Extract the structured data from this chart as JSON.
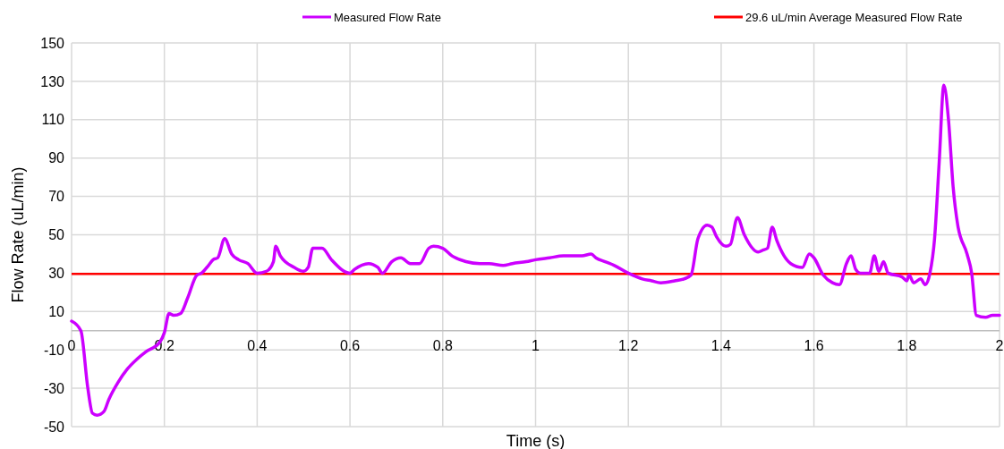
{
  "chart_data": {
    "type": "line",
    "xlabel": "Time (s)",
    "ylabel": "Flow Rate (uL/min)",
    "xlim": [
      0,
      2
    ],
    "xticks": [
      0,
      0.2,
      0.4,
      0.6,
      0.8,
      1,
      1.2,
      1.4,
      1.6,
      1.8,
      2
    ],
    "ylim": [
      -50,
      150
    ],
    "yticks": [
      -50,
      -30,
      -10,
      10,
      30,
      50,
      70,
      90,
      110,
      130,
      150
    ],
    "grid": true,
    "legend": "top",
    "marker": "none",
    "line_style": "solid",
    "series": [
      {
        "name": "Measured Flow Rate",
        "color": "#cc00ff",
        "x": [
          0,
          0.02,
          0.035,
          0.045,
          0.055,
          0.07,
          0.08,
          0.1,
          0.12,
          0.14,
          0.16,
          0.19,
          0.2,
          0.21,
          0.22,
          0.235,
          0.25,
          0.27,
          0.28,
          0.295,
          0.305,
          0.315,
          0.33,
          0.345,
          0.36,
          0.38,
          0.4,
          0.42,
          0.435,
          0.44,
          0.45,
          0.48,
          0.5,
          0.51,
          0.52,
          0.54,
          0.56,
          0.6,
          0.61,
          0.64,
          0.66,
          0.67,
          0.69,
          0.71,
          0.73,
          0.75,
          0.77,
          0.78,
          0.8,
          0.82,
          0.85,
          0.88,
          0.9,
          0.93,
          0.95,
          0.98,
          1,
          1.03,
          1.06,
          1.1,
          1.12,
          1.13,
          1.15,
          1.17,
          1.2,
          1.23,
          1.25,
          1.27,
          1.3,
          1.32,
          1.335,
          1.35,
          1.37,
          1.38,
          1.39,
          1.41,
          1.42,
          1.435,
          1.45,
          1.48,
          1.49,
          1.5,
          1.51,
          1.52,
          1.55,
          1.575,
          1.59,
          1.6,
          1.62,
          1.64,
          1.655,
          1.67,
          1.68,
          1.69,
          1.7,
          1.72,
          1.73,
          1.74,
          1.75,
          1.76,
          1.79,
          1.8,
          1.805,
          1.815,
          1.83,
          1.84,
          1.85,
          1.86,
          1.87,
          1.88,
          1.89,
          1.9,
          1.91,
          1.93,
          1.94,
          1.95,
          1.97,
          1.985,
          2
        ],
        "values": [
          5,
          0,
          -30,
          -43,
          -44,
          -42,
          -36,
          -27,
          -20,
          -15,
          -11,
          -6,
          -1,
          9,
          8,
          9,
          17,
          29,
          30,
          34,
          37,
          38,
          48,
          40,
          37,
          35,
          30,
          31,
          36,
          44,
          39,
          33,
          31,
          33,
          43,
          43,
          37,
          30,
          32,
          35,
          33,
          30,
          36,
          38,
          35,
          35,
          43,
          44,
          43,
          39,
          36,
          35,
          35,
          34,
          35,
          36,
          37,
          38,
          39,
          39,
          40,
          38,
          36,
          34,
          30,
          27,
          26,
          25,
          26,
          27,
          29,
          48,
          55,
          54,
          49,
          44,
          45,
          59,
          50,
          41,
          42,
          43,
          54,
          47,
          35,
          33,
          40,
          38,
          29,
          25,
          24,
          35,
          39,
          32,
          30,
          30,
          39,
          31,
          36,
          30,
          28,
          26,
          29,
          25,
          27,
          24,
          30,
          48,
          88,
          128,
          110,
          75,
          55,
          40,
          30,
          8,
          7,
          8,
          8
        ]
      }
    ],
    "ref_lines": [
      {
        "axis": "y",
        "value": 29.6,
        "label": "29.6 uL/min Average Measured Flow Rate",
        "color": "#ff0000"
      }
    ]
  }
}
